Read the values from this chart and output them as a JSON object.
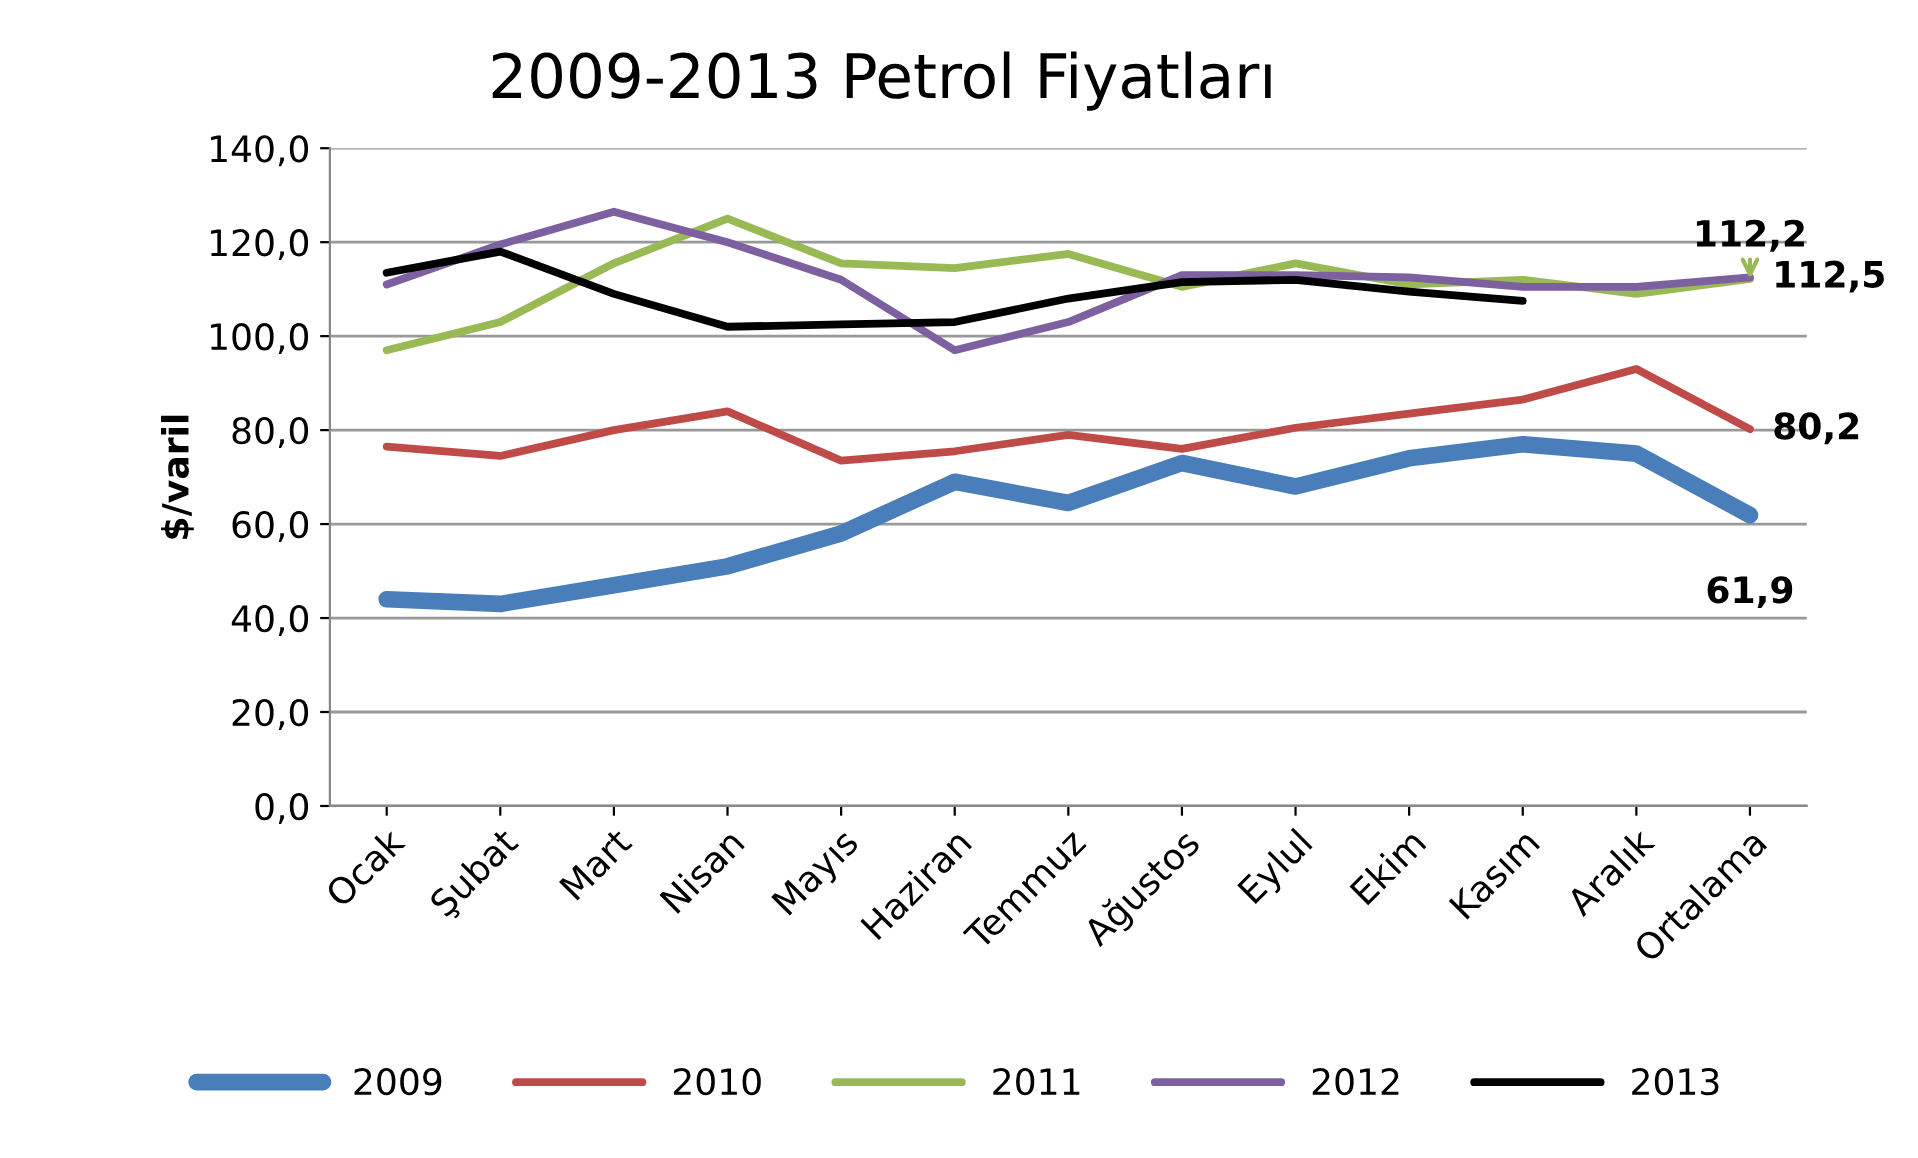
{
  "chart_data": {
    "type": "line",
    "title": "2009-2013 Petrol Fiyatları",
    "ylabel": "$/varil",
    "categories": [
      "Ocak",
      "Şubat",
      "Mart",
      "Nisan",
      "Mayıs",
      "Haziran",
      "Temmuz",
      "Ağustos",
      "Eylul",
      "Ekim",
      "Kasım",
      "Aralık",
      "Ortalama"
    ],
    "series": [
      {
        "name": "2009",
        "color": "#4a7ebb",
        "values": [
          44,
          43,
          47,
          51,
          58,
          69,
          64.5,
          73,
          68,
          74,
          77,
          75,
          61.9
        ],
        "value_labels": [
          null,
          null,
          null,
          null,
          null,
          null,
          null,
          null,
          null,
          null,
          null,
          null,
          "61,9"
        ]
      },
      {
        "name": "2010",
        "color": "#be4b48",
        "values": [
          76.5,
          74.5,
          80,
          84,
          73.5,
          75.5,
          79,
          76,
          80.5,
          83.5,
          86.5,
          93,
          80.2
        ],
        "value_labels": [
          null,
          null,
          null,
          null,
          null,
          null,
          null,
          null,
          null,
          null,
          null,
          null,
          "80,2"
        ]
      },
      {
        "name": "2011",
        "color": "#98b954",
        "values": [
          97,
          103,
          115.5,
          125,
          115.5,
          114.5,
          117.5,
          110.5,
          115.5,
          111,
          112,
          109,
          112.2
        ],
        "value_labels": [
          null,
          null,
          null,
          null,
          null,
          null,
          null,
          null,
          null,
          null,
          null,
          null,
          "112,2"
        ]
      },
      {
        "name": "2012",
        "color": "#7d60a0",
        "values": [
          111,
          119.5,
          126.5,
          120,
          112,
          97,
          103,
          113,
          113,
          112.5,
          110.5,
          110.5,
          112.5
        ],
        "value_labels": [
          null,
          null,
          null,
          null,
          null,
          null,
          null,
          null,
          null,
          null,
          null,
          null,
          "112,5"
        ]
      },
      {
        "name": "2013",
        "color": "#000000",
        "values": [
          113.5,
          118,
          109,
          102,
          102.5,
          103,
          108,
          111.5,
          112,
          109.5,
          107.5,
          null,
          null
        ]
      }
    ],
    "ylim": [
      0,
      140
    ],
    "yticks": [
      {
        "value": 0,
        "label": "0,0"
      },
      {
        "value": 20,
        "label": "20,0"
      },
      {
        "value": 40,
        "label": "40,0"
      },
      {
        "value": 60,
        "label": "60,0"
      },
      {
        "value": 80,
        "label": "80,0"
      },
      {
        "value": 100,
        "label": "100,0"
      },
      {
        "value": 120,
        "label": "120,0"
      },
      {
        "value": 140,
        "label": "140,0"
      }
    ],
    "grid": "y",
    "legend": "bottom",
    "marker": "none",
    "line_style": "solid"
  }
}
